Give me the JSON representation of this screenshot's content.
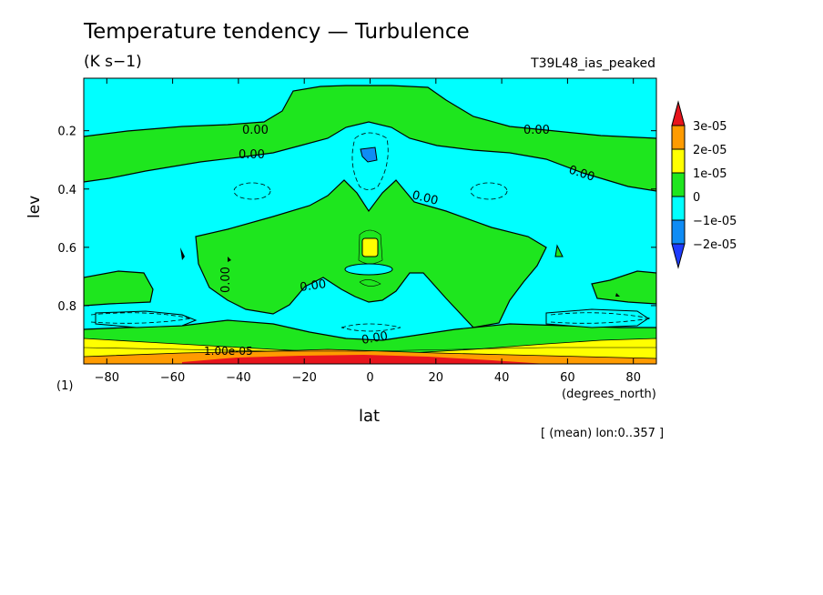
{
  "title": "Temperature tendency — Turbulence",
  "units": "(K s−1)",
  "run_name": "T39L48_ias_peaked",
  "footer_note": "[ (mean) lon:0..357 ]",
  "page_index": "(1)",
  "chart_data": {
    "type": "heatmap",
    "xlabel": "lat",
    "x_unit_label": "(degrees_north)",
    "ylabel": "lev",
    "xlim": [
      -87,
      87
    ],
    "ylim": [
      1.0,
      0.02
    ],
    "x_ticks": [
      -80,
      -60,
      -40,
      -20,
      0,
      20,
      40,
      60,
      80
    ],
    "y_ticks": [
      0.2,
      0.4,
      0.6,
      0.8
    ],
    "colorbar": {
      "levels": [
        "3e-05",
        "2e-05",
        "1e-05",
        "0",
        "−1e-05",
        "−2e-05"
      ],
      "bins": [
        {
          "range": ">3e-05",
          "color": "#e8141c"
        },
        {
          "range": "2e-05..3e-05",
          "color": "#ff9b00"
        },
        {
          "range": "1e-05..2e-05",
          "color": "#ffff00"
        },
        {
          "range": "0..1e-05",
          "color": "#1ee61e"
        },
        {
          "range": "-1e-05..0",
          "color": "#00ffff"
        },
        {
          "range": "-2e-05..-1e-05",
          "color": "#0f8cf5"
        },
        {
          "range": "<-2e-05",
          "color": "#1e3cff"
        }
      ]
    },
    "contour_labels": [
      "0.00",
      "0.00",
      "0.00",
      "0.00",
      "0.00",
      "0.00",
      "0.00",
      "0.00",
      "1.00e-05"
    ]
  }
}
